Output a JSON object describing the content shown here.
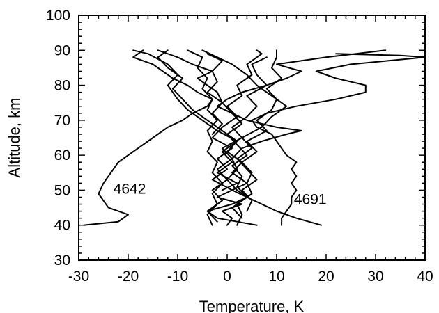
{
  "chart_data": {
    "type": "line",
    "title": "",
    "xlabel": "Temperature, K",
    "ylabel": "Altitude, km",
    "xlim": [
      -30,
      40
    ],
    "ylim": [
      30,
      100
    ],
    "xticks": [
      -30,
      -20,
      -10,
      0,
      10,
      20,
      30,
      40
    ],
    "yticks": [
      30,
      40,
      50,
      60,
      70,
      80,
      90,
      100
    ],
    "xtick_labels": [
      "-30",
      "-20",
      "-10",
      "0",
      "10",
      "20",
      "30",
      "40"
    ],
    "ytick_labels": [
      "30",
      "40",
      "50",
      "60",
      "70",
      "80",
      "90",
      "100"
    ],
    "grid": false,
    "annotations": [
      {
        "text": "4642",
        "x": -23,
        "y": 49
      },
      {
        "text": "4691",
        "x": 13.5,
        "y": 46
      }
    ],
    "series": [
      {
        "points": [
          [
            -29,
            40
          ],
          [
            -22,
            41
          ],
          [
            -20,
            43
          ],
          [
            -24,
            45
          ],
          [
            -25,
            47
          ],
          [
            -26,
            49
          ],
          [
            -25,
            52
          ],
          [
            -24,
            54
          ],
          [
            -23,
            56
          ],
          [
            -22,
            58
          ],
          [
            -20,
            60
          ],
          [
            -18,
            62
          ],
          [
            -16,
            64
          ],
          [
            -14,
            66
          ],
          [
            -12,
            68
          ],
          [
            -9,
            70
          ],
          [
            -7,
            72
          ],
          [
            -4,
            74
          ],
          [
            -3,
            76
          ],
          [
            -6,
            78
          ],
          [
            -8,
            80
          ],
          [
            -11,
            82
          ],
          [
            -13,
            84
          ],
          [
            -15,
            86
          ],
          [
            -19,
            88
          ],
          [
            -17,
            90
          ]
        ]
      },
      {
        "points": [
          [
            11,
            40
          ],
          [
            11,
            42
          ],
          [
            12,
            44
          ],
          [
            13,
            46
          ],
          [
            13,
            48
          ],
          [
            14,
            50
          ],
          [
            13,
            52
          ],
          [
            14,
            54
          ],
          [
            13,
            56
          ],
          [
            14,
            58
          ],
          [
            12,
            60
          ],
          [
            11,
            62
          ],
          [
            10,
            64
          ],
          [
            9,
            66
          ],
          [
            6,
            68
          ],
          [
            5,
            70
          ],
          [
            8,
            72
          ],
          [
            14,
            74
          ],
          [
            22,
            76
          ],
          [
            28,
            78
          ],
          [
            28,
            80
          ],
          [
            22,
            82
          ],
          [
            18,
            84
          ],
          [
            25,
            86
          ],
          [
            40,
            88
          ],
          [
            35,
            88.5
          ],
          [
            22,
            89
          ]
        ]
      },
      {
        "points": [
          [
            19,
            40
          ],
          [
            14,
            42
          ],
          [
            10,
            44
          ],
          [
            7,
            46
          ],
          [
            4,
            48
          ],
          [
            2,
            50
          ],
          [
            0,
            53
          ],
          [
            2,
            56
          ],
          [
            1,
            59
          ],
          [
            3,
            62
          ],
          [
            7,
            64
          ],
          [
            12,
            66
          ],
          [
            15,
            67
          ],
          [
            10,
            68
          ],
          [
            4,
            70
          ],
          [
            1,
            72
          ],
          [
            -2,
            74
          ],
          [
            0,
            76
          ],
          [
            3,
            78
          ],
          [
            8,
            80
          ],
          [
            12,
            82
          ],
          [
            15,
            84
          ],
          [
            10,
            86
          ],
          [
            20,
            88
          ],
          [
            32,
            90
          ]
        ]
      },
      {
        "points": [
          [
            2,
            40
          ],
          [
            3,
            43
          ],
          [
            2,
            46
          ],
          [
            5,
            49
          ],
          [
            4,
            52
          ],
          [
            5,
            55
          ],
          [
            3,
            58
          ],
          [
            6,
            61
          ],
          [
            4,
            64
          ],
          [
            8,
            67
          ],
          [
            6,
            70
          ],
          [
            9,
            73
          ],
          [
            10,
            76
          ],
          [
            8,
            79
          ],
          [
            11,
            82
          ],
          [
            9,
            85
          ],
          [
            10,
            88
          ],
          [
            10,
            90
          ]
        ]
      },
      {
        "points": [
          [
            -3,
            40
          ],
          [
            -4,
            43
          ],
          [
            -2,
            46
          ],
          [
            -3,
            49
          ],
          [
            -1,
            52
          ],
          [
            -3,
            55
          ],
          [
            -2,
            58
          ],
          [
            -4,
            61
          ],
          [
            -3,
            64
          ],
          [
            -4,
            67
          ],
          [
            -2,
            70
          ],
          [
            -4,
            73
          ],
          [
            -3,
            76
          ],
          [
            -5,
            79
          ],
          [
            -4,
            82
          ],
          [
            -6,
            85
          ],
          [
            -5,
            88
          ],
          [
            -8,
            90
          ]
        ]
      },
      {
        "points": [
          [
            6,
            40
          ],
          [
            2,
            41
          ],
          [
            -2,
            42
          ],
          [
            -4,
            44
          ],
          [
            1,
            46
          ],
          [
            4,
            48
          ],
          [
            1,
            50
          ],
          [
            4,
            52
          ],
          [
            1,
            55
          ],
          [
            3,
            58
          ],
          [
            0,
            61
          ],
          [
            2,
            64
          ],
          [
            -1,
            67
          ],
          [
            -4,
            70
          ],
          [
            -7,
            73
          ],
          [
            -9,
            76
          ],
          [
            -11,
            79
          ],
          [
            -9,
            82
          ],
          [
            -12,
            85
          ],
          [
            -14,
            88
          ],
          [
            -12,
            90
          ]
        ]
      },
      {
        "points": [
          [
            0,
            40
          ],
          [
            1,
            42
          ],
          [
            -1,
            44
          ],
          [
            3,
            46
          ],
          [
            -2,
            48
          ],
          [
            1,
            50
          ],
          [
            -3,
            53
          ],
          [
            0,
            56
          ],
          [
            -2,
            59
          ],
          [
            1,
            62
          ],
          [
            -3,
            65
          ],
          [
            -1,
            68
          ],
          [
            2,
            71
          ],
          [
            0,
            74
          ],
          [
            3,
            77
          ],
          [
            2,
            80
          ],
          [
            5,
            83
          ],
          [
            4,
            86
          ],
          [
            7,
            89
          ],
          [
            6,
            90
          ]
        ]
      },
      {
        "points": [
          [
            -2,
            41
          ],
          [
            -4,
            44
          ],
          [
            -1,
            47
          ],
          [
            -3,
            50
          ],
          [
            0,
            53
          ],
          [
            -2,
            56
          ],
          [
            1,
            59
          ],
          [
            -1,
            62
          ],
          [
            3,
            65
          ],
          [
            1,
            68
          ],
          [
            4,
            71
          ],
          [
            6,
            74
          ],
          [
            4,
            77
          ],
          [
            8,
            80
          ],
          [
            6,
            83
          ],
          [
            5,
            86
          ],
          [
            8,
            88
          ]
        ]
      },
      {
        "points": [
          [
            4,
            44
          ],
          [
            5,
            47
          ],
          [
            3,
            50
          ],
          [
            6,
            53
          ],
          [
            4,
            56
          ],
          [
            2,
            59
          ],
          [
            5,
            62
          ],
          [
            3,
            65
          ],
          [
            7,
            68
          ],
          [
            9,
            71
          ],
          [
            12,
            74
          ],
          [
            9,
            77
          ],
          [
            6,
            80
          ],
          [
            4,
            83
          ],
          [
            1,
            86
          ],
          [
            -2,
            88
          ],
          [
            -5,
            90
          ]
        ]
      },
      {
        "points": [
          [
            -1,
            50
          ],
          [
            2,
            52
          ],
          [
            -2,
            55
          ],
          [
            1,
            58
          ],
          [
            -1,
            61
          ],
          [
            2,
            64
          ],
          [
            -2,
            67
          ],
          [
            -5,
            70
          ],
          [
            -8,
            73
          ],
          [
            -10,
            76
          ],
          [
            -12,
            80
          ],
          [
            -10,
            83
          ],
          [
            -12,
            86
          ],
          [
            -16,
            89
          ],
          [
            -19,
            90
          ]
        ]
      },
      {
        "points": [
          [
            3,
            42
          ],
          [
            1,
            45
          ],
          [
            4,
            48
          ],
          [
            2,
            51
          ],
          [
            3,
            54
          ],
          [
            1,
            57
          ],
          [
            4,
            60
          ],
          [
            2,
            63
          ],
          [
            0,
            66
          ],
          [
            3,
            69
          ],
          [
            1,
            72
          ],
          [
            -1,
            75
          ],
          [
            -4,
            78
          ],
          [
            -2,
            81
          ],
          [
            -3,
            84
          ],
          [
            -1,
            87
          ],
          [
            -4,
            89
          ]
        ]
      },
      {
        "points": [
          [
            -3,
            66
          ],
          [
            -1,
            69
          ],
          [
            -3,
            72
          ],
          [
            -1,
            75
          ],
          [
            -2,
            78
          ],
          [
            -4,
            80
          ],
          [
            -6,
            82
          ],
          [
            -3,
            84
          ],
          [
            -7,
            86
          ],
          [
            -10,
            88
          ],
          [
            -14,
            90
          ]
        ]
      }
    ]
  }
}
